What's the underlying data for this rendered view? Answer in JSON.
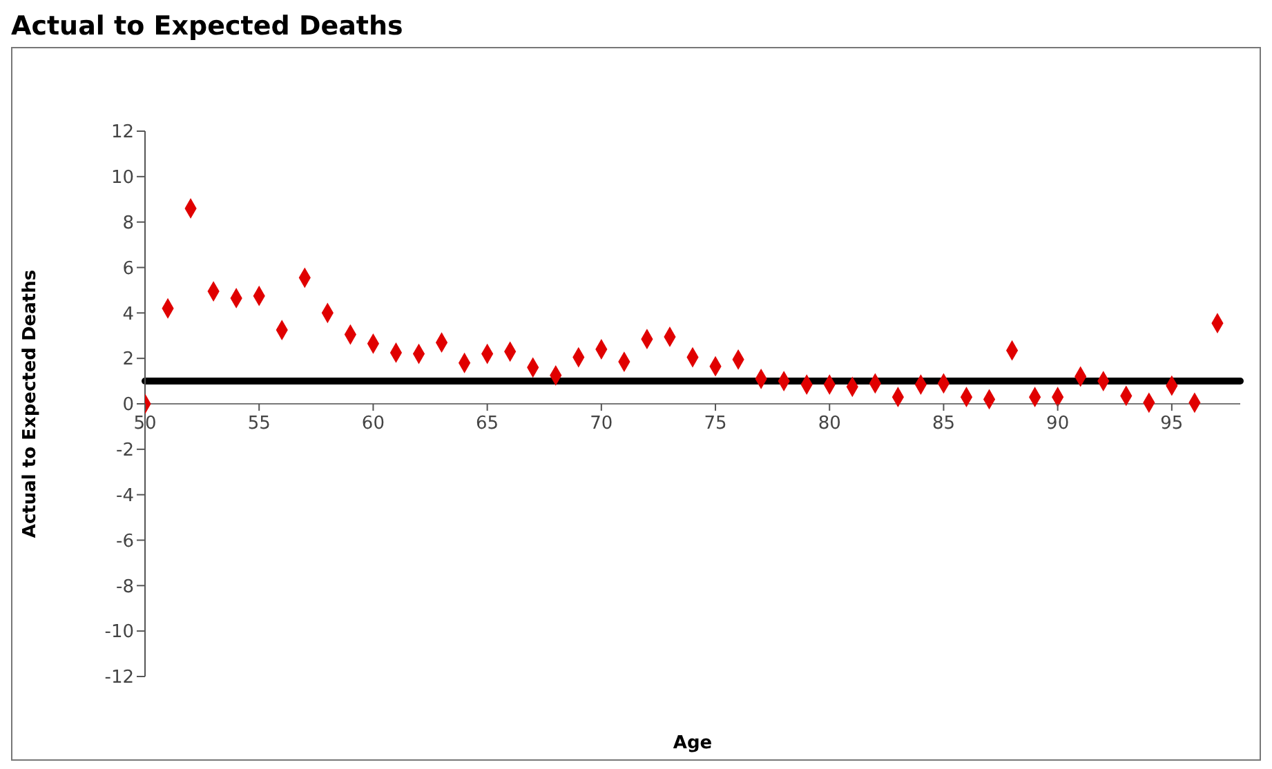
{
  "chart_data": {
    "type": "scatter",
    "title": "Actual to Expected Deaths",
    "xlabel": "Age",
    "ylabel": "Actual to Expected Deaths",
    "x": [
      50,
      51,
      52,
      53,
      54,
      55,
      56,
      57,
      58,
      59,
      60,
      61,
      62,
      63,
      64,
      65,
      66,
      67,
      68,
      69,
      70,
      71,
      72,
      73,
      74,
      75,
      76,
      77,
      78,
      79,
      80,
      81,
      82,
      83,
      84,
      85,
      86,
      87,
      88,
      89,
      90,
      91,
      92,
      93,
      94,
      95,
      96,
      97
    ],
    "series": [
      {
        "color": "#e00000",
        "values": [
          0,
          4.2,
          8.6,
          4.95,
          4.65,
          4.75,
          3.25,
          5.55,
          4.0,
          3.05,
          2.65,
          2.25,
          2.2,
          2.7,
          1.8,
          2.2,
          2.3,
          1.6,
          1.25,
          2.05,
          2.4,
          1.85,
          2.85,
          2.95,
          2.05,
          1.65,
          1.95,
          1.1,
          1.0,
          0.85,
          0.85,
          0.75,
          0.9,
          0.3,
          0.85,
          0.9,
          0.3,
          0.2,
          2.35,
          0.3,
          0.3,
          1.2,
          1.0,
          0.35,
          0.05,
          0.8,
          0.05,
          3.55
        ]
      }
    ],
    "xlim": [
      50,
      98
    ],
    "xticks": [
      50,
      55,
      60,
      65,
      70,
      75,
      80,
      85,
      90,
      95
    ],
    "ylim": [
      -12,
      12
    ],
    "yticks": [
      -12,
      -10,
      -8,
      -6,
      -4,
      -2,
      0,
      2,
      4,
      6,
      8,
      10,
      12
    ],
    "ref_lines": [
      {
        "axis": "y",
        "value": 1,
        "color": "#000000"
      }
    ],
    "marker": "diamond",
    "grid": false,
    "legend": false
  }
}
